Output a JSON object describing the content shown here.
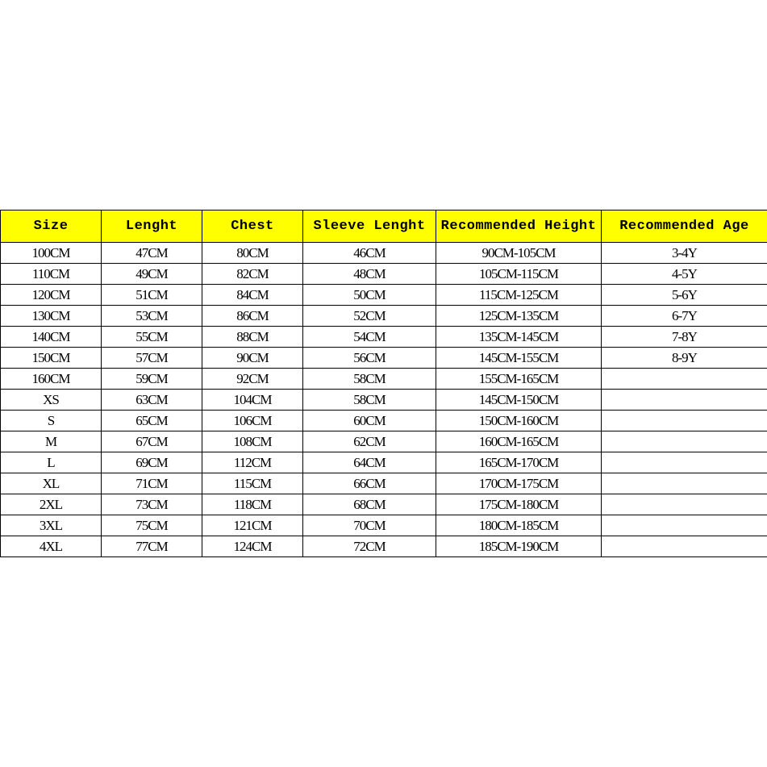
{
  "table": {
    "headers": [
      "Size",
      "Lenght",
      "Chest",
      "Sleeve Lenght",
      "Recommended Height",
      "Recommended Age"
    ],
    "header_color": "#ffff00",
    "rows": [
      [
        "100CM",
        "47CM",
        "80CM",
        "46CM",
        "90CM-105CM",
        "3-4Y"
      ],
      [
        "110CM",
        "49CM",
        "82CM",
        "48CM",
        "105CM-115CM",
        "4-5Y"
      ],
      [
        "120CM",
        "51CM",
        "84CM",
        "50CM",
        "115CM-125CM",
        "5-6Y"
      ],
      [
        "130CM",
        "53CM",
        "86CM",
        "52CM",
        "125CM-135CM",
        "6-7Y"
      ],
      [
        "140CM",
        "55CM",
        "88CM",
        "54CM",
        "135CM-145CM",
        "7-8Y"
      ],
      [
        "150CM",
        "57CM",
        "90CM",
        "56CM",
        "145CM-155CM",
        "8-9Y"
      ],
      [
        "160CM",
        "59CM",
        "92CM",
        "58CM",
        "155CM-165CM",
        ""
      ],
      [
        "XS",
        "63CM",
        "104CM",
        "58CM",
        "145CM-150CM",
        ""
      ],
      [
        "S",
        "65CM",
        "106CM",
        "60CM",
        "150CM-160CM",
        ""
      ],
      [
        "M",
        "67CM",
        "108CM",
        "62CM",
        "160CM-165CM",
        ""
      ],
      [
        "L",
        "69CM",
        "112CM",
        "64CM",
        "165CM-170CM",
        ""
      ],
      [
        "XL",
        "71CM",
        "115CM",
        "66CM",
        "170CM-175CM",
        ""
      ],
      [
        "2XL",
        "73CM",
        "118CM",
        "68CM",
        "175CM-180CM",
        ""
      ],
      [
        "3XL",
        "75CM",
        "121CM",
        "70CM",
        "180CM-185CM",
        ""
      ],
      [
        "4XL",
        "77CM",
        "124CM",
        "72CM",
        "185CM-190CM",
        ""
      ]
    ]
  }
}
